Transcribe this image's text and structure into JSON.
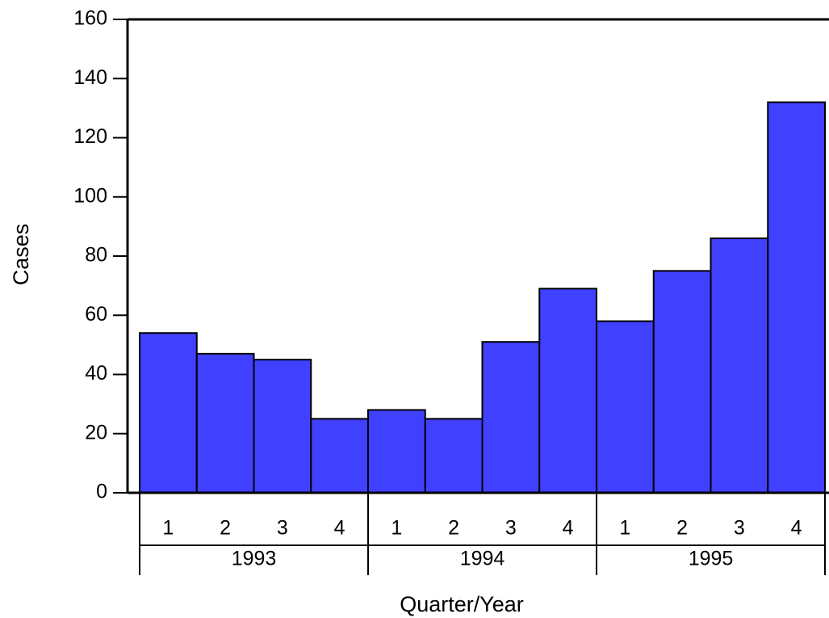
{
  "chart_data": {
    "type": "bar",
    "y_label": "Cases",
    "x_label": "Quarter/Year",
    "categories": [
      "1",
      "2",
      "3",
      "4",
      "1",
      "2",
      "3",
      "4",
      "1",
      "2",
      "3",
      "4"
    ],
    "groups": [
      "1993",
      "1994",
      "1995"
    ],
    "values": [
      54,
      47,
      45,
      25,
      28,
      25,
      51,
      69,
      58,
      75,
      86,
      132
    ],
    "color": "#4040ff",
    "ylim": [
      0,
      160
    ],
    "yticks": [
      0,
      20,
      40,
      60,
      80,
      100,
      120,
      140,
      160
    ]
  }
}
